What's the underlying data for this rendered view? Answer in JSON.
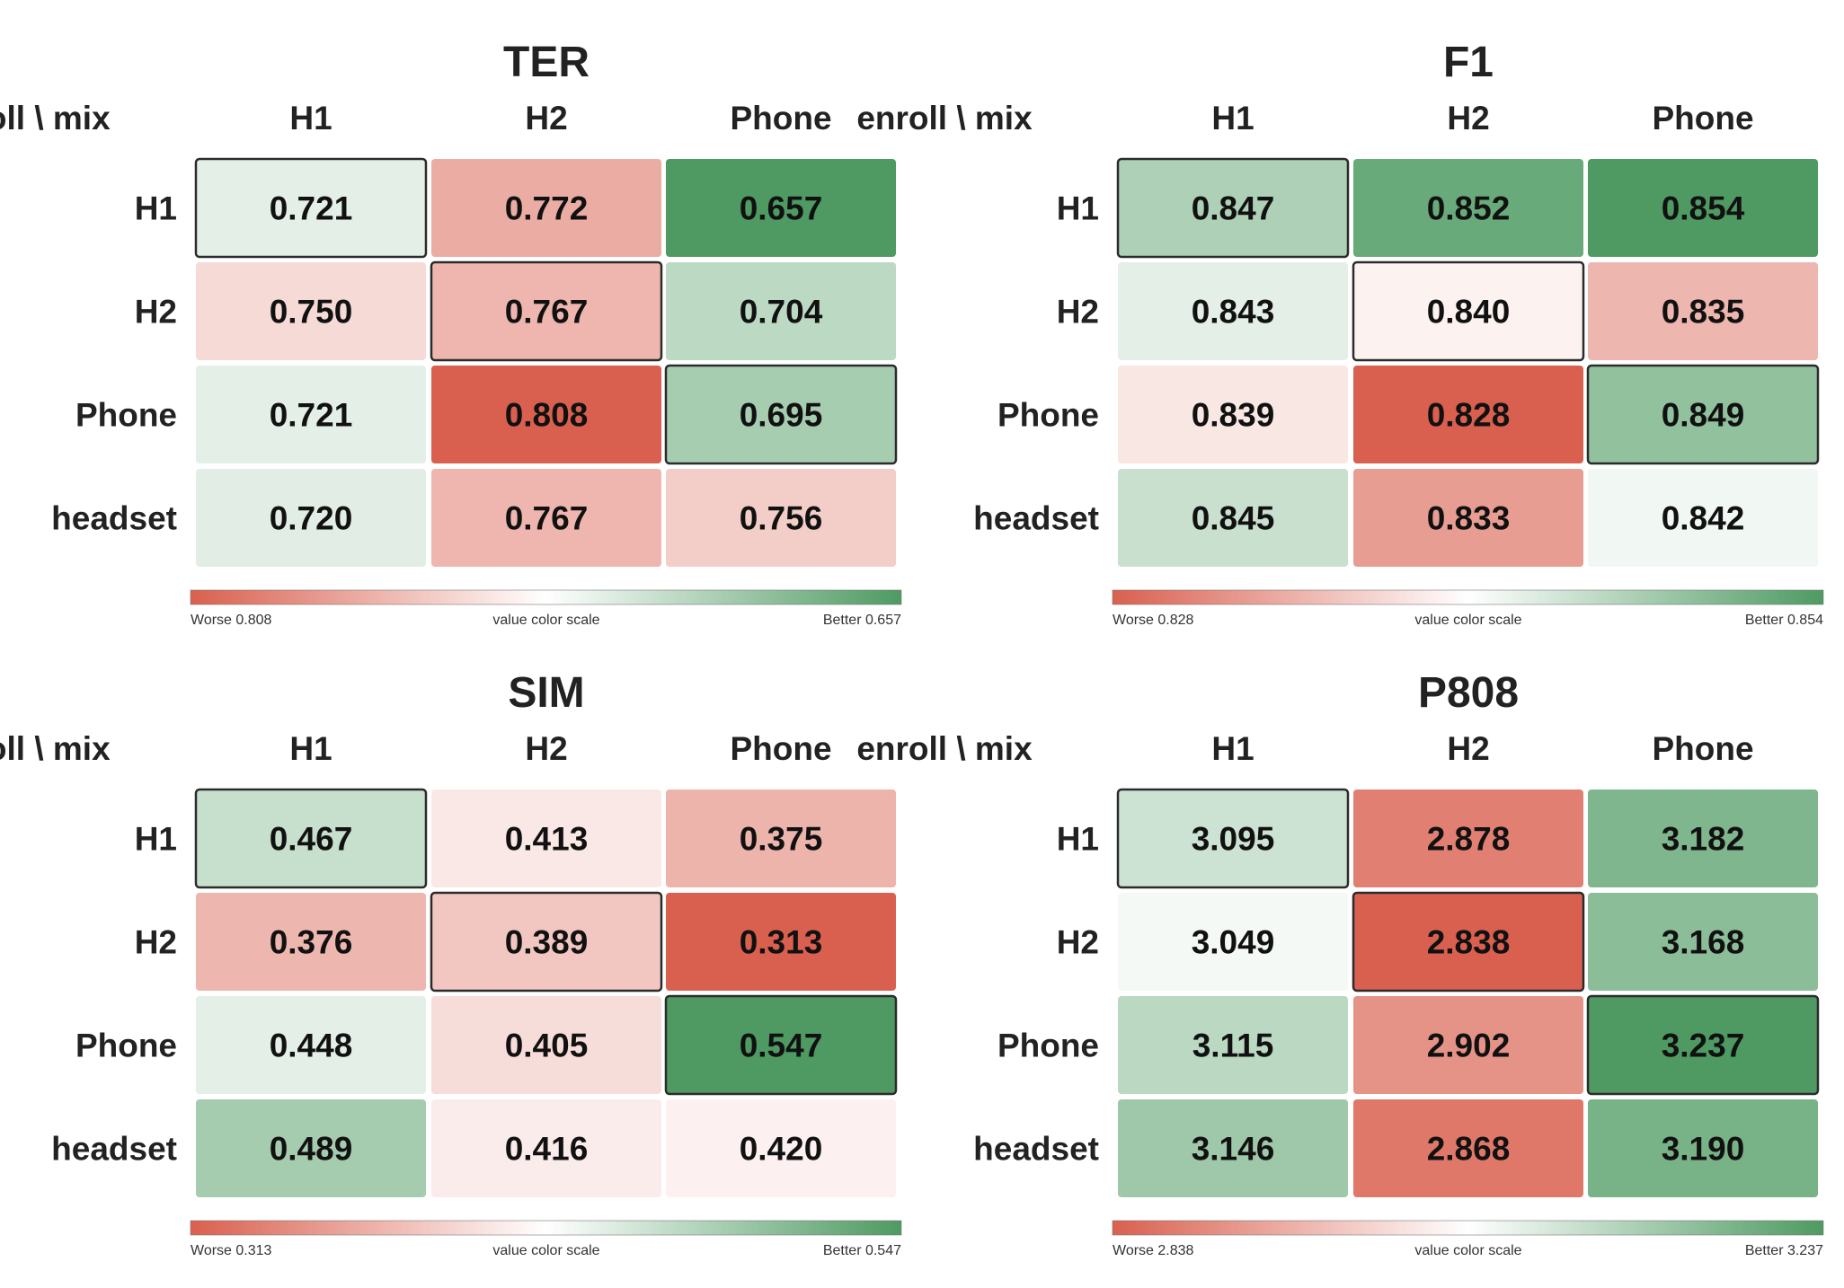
{
  "chart_data": [
    {
      "type": "heatmap",
      "title": "TER",
      "corner_label": "enroll \\ mix",
      "columns": [
        "H1",
        "H2",
        "Phone"
      ],
      "rows": [
        "H1",
        "H2",
        "Phone",
        "headset"
      ],
      "values": [
        [
          0.721,
          0.772,
          0.657
        ],
        [
          0.75,
          0.767,
          0.704
        ],
        [
          0.721,
          0.808,
          0.695
        ],
        [
          0.72,
          0.767,
          0.756
        ]
      ],
      "decimals": 3,
      "higher_is_better": false,
      "highlighted_diagonal": true,
      "color_scale": {
        "label": "value color scale",
        "worse_label": "Worse 0.808",
        "better_label": "Better 0.657",
        "worse_value": 0.808,
        "better_value": 0.657,
        "worse_color": "#d9604f",
        "mid_color": "#ffffff",
        "better_color": "#4e9a62"
      }
    },
    {
      "type": "heatmap",
      "title": "F1",
      "corner_label": "enroll \\ mix",
      "columns": [
        "H1",
        "H2",
        "Phone"
      ],
      "rows": [
        "H1",
        "H2",
        "Phone",
        "headset"
      ],
      "values": [
        [
          0.847,
          0.852,
          0.854
        ],
        [
          0.843,
          0.84,
          0.835
        ],
        [
          0.839,
          0.828,
          0.849
        ],
        [
          0.845,
          0.833,
          0.842
        ]
      ],
      "decimals": 3,
      "higher_is_better": true,
      "highlighted_diagonal": true,
      "color_scale": {
        "label": "value color scale",
        "worse_label": "Worse 0.828",
        "better_label": "Better 0.854",
        "worse_value": 0.828,
        "better_value": 0.854,
        "worse_color": "#d9604f",
        "mid_color": "#ffffff",
        "better_color": "#4e9a62"
      }
    },
    {
      "type": "heatmap",
      "title": "SIM",
      "corner_label": "enroll \\ mix",
      "columns": [
        "H1",
        "H2",
        "Phone"
      ],
      "rows": [
        "H1",
        "H2",
        "Phone",
        "headset"
      ],
      "values": [
        [
          0.467,
          0.413,
          0.375
        ],
        [
          0.376,
          0.389,
          0.313
        ],
        [
          0.448,
          0.405,
          0.547
        ],
        [
          0.489,
          0.416,
          0.42
        ]
      ],
      "decimals": 3,
      "higher_is_better": true,
      "highlighted_diagonal": true,
      "color_scale": {
        "label": "value color scale",
        "worse_label": "Worse 0.313",
        "better_label": "Better 0.547",
        "worse_value": 0.313,
        "better_value": 0.547,
        "worse_color": "#d9604f",
        "mid_color": "#ffffff",
        "better_color": "#4e9a62"
      }
    },
    {
      "type": "heatmap",
      "title": "P808",
      "corner_label": "enroll \\ mix",
      "columns": [
        "H1",
        "H2",
        "Phone"
      ],
      "rows": [
        "H1",
        "H2",
        "Phone",
        "headset"
      ],
      "values": [
        [
          3.095,
          2.878,
          3.182
        ],
        [
          3.049,
          2.838,
          3.168
        ],
        [
          3.115,
          2.902,
          3.237
        ],
        [
          3.146,
          2.868,
          3.19
        ]
      ],
      "decimals": 3,
      "higher_is_better": true,
      "highlighted_diagonal": true,
      "color_scale": {
        "label": "value color scale",
        "worse_label": "Worse 2.838",
        "better_label": "Better 3.237",
        "worse_value": 2.838,
        "better_value": 3.237,
        "worse_color": "#d9604f",
        "mid_color": "#ffffff",
        "better_color": "#4e9a62"
      }
    }
  ]
}
